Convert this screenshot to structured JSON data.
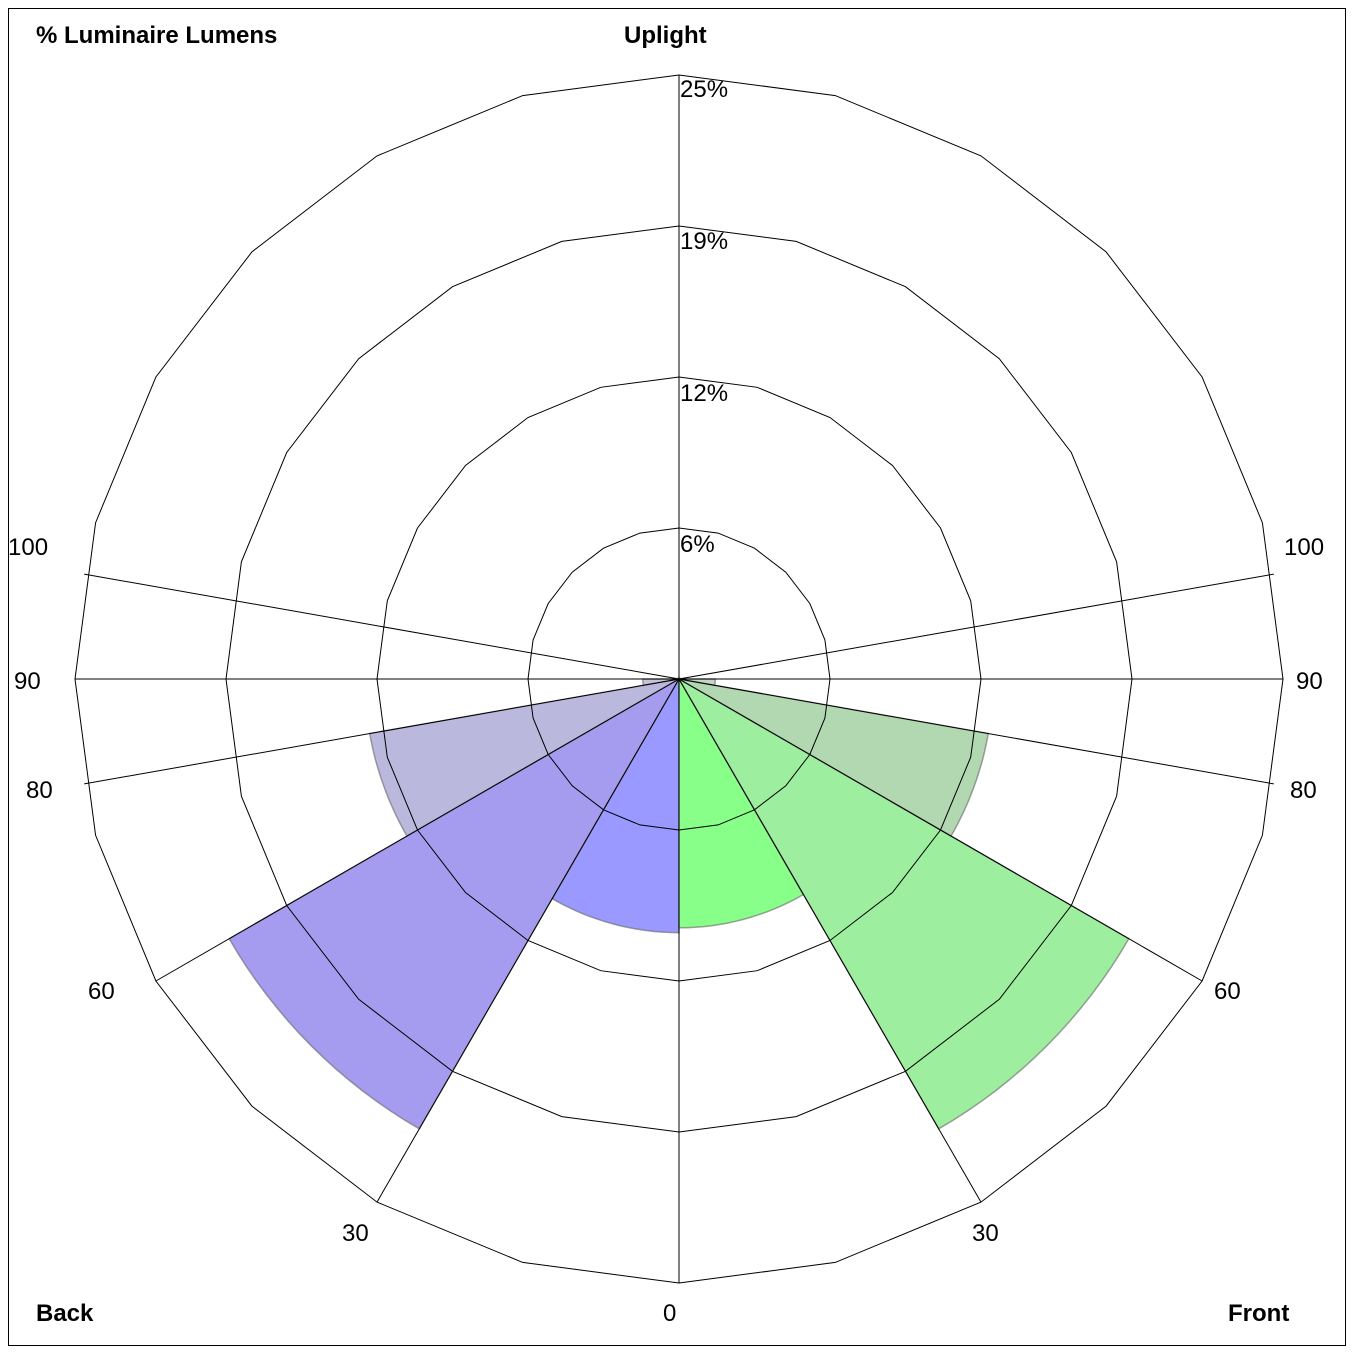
{
  "chart_data": {
    "type": "polar-sector",
    "title": "% Luminaire Lumens",
    "top_label": "Uplight",
    "bottom_left_label": "Back",
    "bottom_right_label": "Front",
    "radial_ticks": [
      "6%",
      "12%",
      "19%",
      "25%"
    ],
    "rmax_percent": 25,
    "angle_labels": {
      "left": [
        "100",
        "90",
        "80",
        "60",
        "30"
      ],
      "right": [
        "100",
        "90",
        "80",
        "60",
        "30"
      ],
      "bottom": "0"
    },
    "angle_lines_deg": [
      0,
      30,
      60,
      80,
      90,
      100
    ],
    "series": [
      {
        "name": "Back",
        "side": "back",
        "sectors": [
          {
            "from": 0,
            "to": 30,
            "value": 10.5
          },
          {
            "from": 30,
            "to": 60,
            "value": 21.5
          },
          {
            "from": 60,
            "to": 80,
            "value": 13.0
          },
          {
            "from": 80,
            "to": 90,
            "value": 1.5
          }
        ],
        "colors": [
          "#9999ff",
          "#a59cf0",
          "#bbb8de",
          "#c8c4d8"
        ]
      },
      {
        "name": "Front",
        "side": "front",
        "sectors": [
          {
            "from": 0,
            "to": 30,
            "value": 10.3
          },
          {
            "from": 30,
            "to": 60,
            "value": 21.5
          },
          {
            "from": 60,
            "to": 80,
            "value": 13.0
          },
          {
            "from": 80,
            "to": 90,
            "value": 1.5
          }
        ],
        "colors": [
          "#88ff88",
          "#9eeea0",
          "#b2d8b2",
          "#c4d6c4"
        ]
      }
    ],
    "grid": true
  }
}
